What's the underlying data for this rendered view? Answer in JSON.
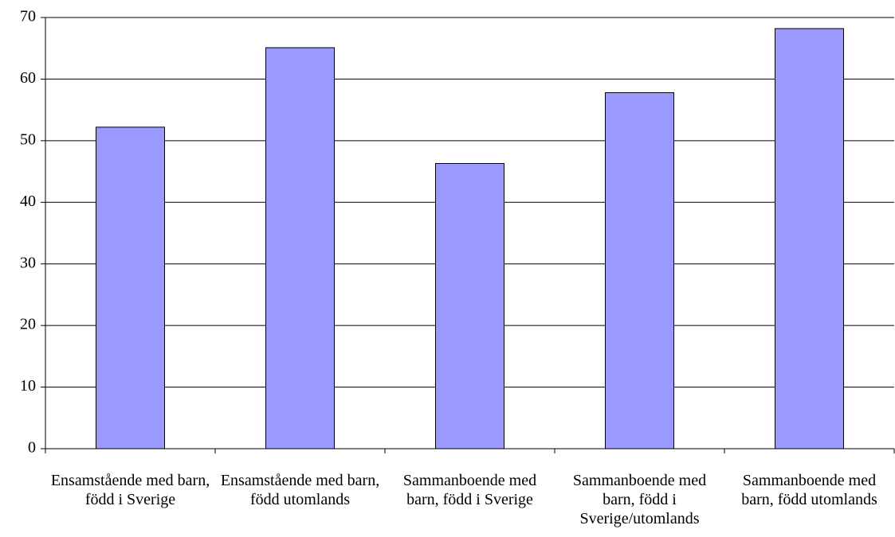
{
  "chart_data": {
    "type": "bar",
    "categories": [
      "Ensamstående med barn, född i Sverige",
      "Ensamstående med barn, född utomlands",
      "Sammanboende med barn, född i Sverige",
      "Sammanboende med barn, född i Sverige/utomlands",
      "Sammanboende med barn, född utomlands"
    ],
    "values": [
      52.2,
      65.1,
      46.3,
      57.8,
      68.2
    ],
    "color": "#9999ff",
    "ylim": [
      0,
      70
    ],
    "yticks": [
      0,
      10,
      20,
      30,
      40,
      50,
      60,
      70
    ],
    "grid": true
  }
}
